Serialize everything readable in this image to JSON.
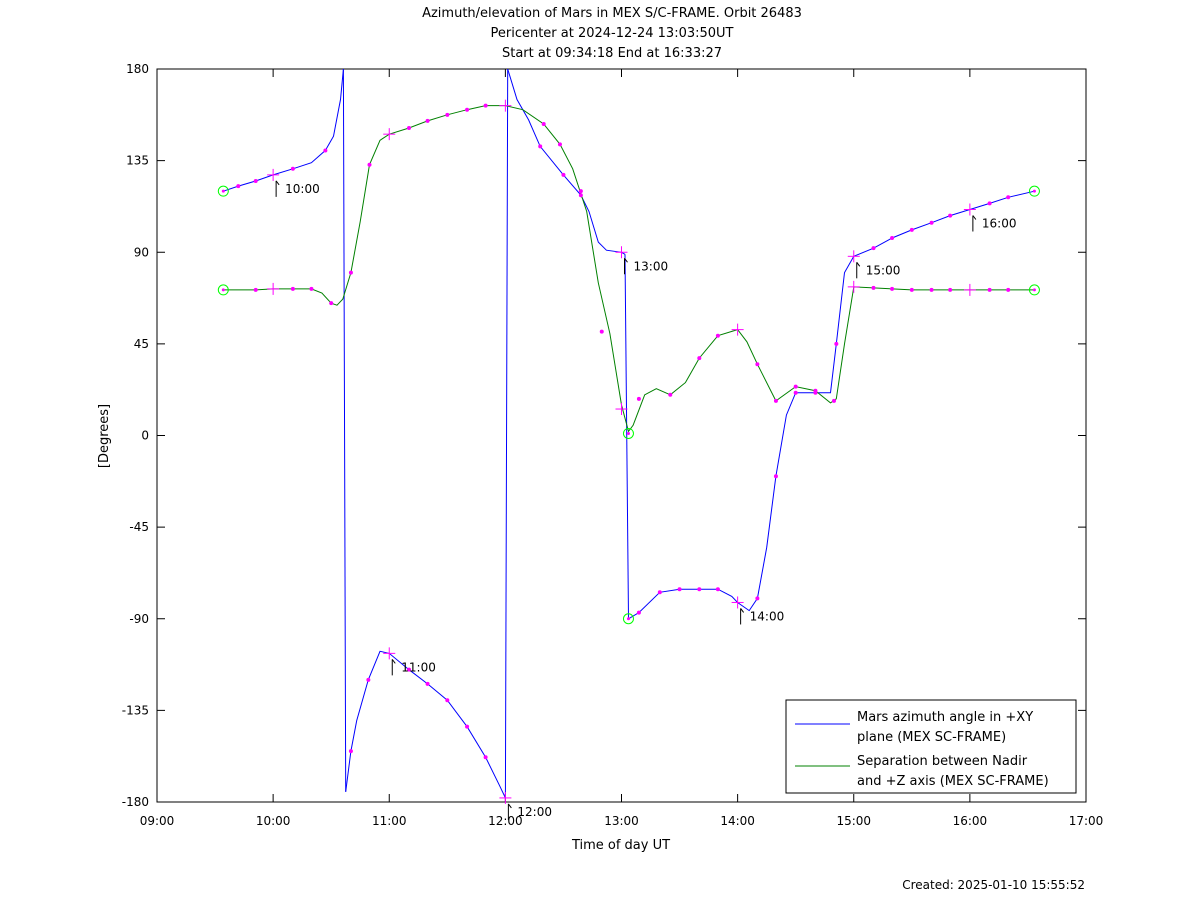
{
  "chart_data": {
    "type": "line",
    "title": [
      "Azimuth/elevation of Mars in MEX S/C-FRAME.  Orbit 26483",
      "Pericenter at 2024-12-24 13:03:50UT",
      "Start at 09:34:18 End at 16:33:27"
    ],
    "xlabel": "Time of day UT",
    "ylabel": "[Degrees]",
    "xlim": [
      9.0,
      17.0
    ],
    "ylim": [
      -180,
      180
    ],
    "x_ticks": [
      {
        "v": 9,
        "label": "09:00"
      },
      {
        "v": 10,
        "label": "10:00"
      },
      {
        "v": 11,
        "label": "11:00"
      },
      {
        "v": 12,
        "label": "12:00"
      },
      {
        "v": 13,
        "label": "13:00"
      },
      {
        "v": 14,
        "label": "14:00"
      },
      {
        "v": 15,
        "label": "15:00"
      },
      {
        "v": 16,
        "label": "16:00"
      },
      {
        "v": 17,
        "label": "17:00"
      }
    ],
    "y_ticks": [
      {
        "v": 180,
        "label": "180"
      },
      {
        "v": 135,
        "label": "135"
      },
      {
        "v": 90,
        "label": "90"
      },
      {
        "v": 45,
        "label": "45"
      },
      {
        "v": 0,
        "label": "0"
      },
      {
        "v": -45,
        "label": "-45"
      },
      {
        "v": -90,
        "label": "-90"
      },
      {
        "v": -135,
        "label": "-135"
      },
      {
        "v": -180,
        "label": "-180"
      }
    ],
    "grid": false,
    "legend_position": "bottom-right",
    "series": [
      {
        "name": "Mars azimuth angle in +XY\nplane (MEX SC-FRAME)",
        "color": "#0000ff",
        "segments": [
          [
            [
              9.571,
              120
            ],
            [
              9.7,
              122.5
            ],
            [
              9.85,
              125
            ],
            [
              10.0,
              128
            ],
            [
              10.17,
              131
            ],
            [
              10.33,
              134
            ],
            [
              10.45,
              140
            ],
            [
              10.52,
              147
            ],
            [
              10.58,
              165
            ],
            [
              10.605,
              180
            ]
          ],
          [
            [
              10.605,
              180
            ],
            [
              10.625,
              -175
            ]
          ],
          [
            [
              10.625,
              -175
            ],
            [
              10.67,
              -155
            ],
            [
              10.72,
              -140
            ],
            [
              10.82,
              -120
            ],
            [
              10.92,
              -106
            ],
            [
              11.0,
              -107
            ],
            [
              11.17,
              -115
            ],
            [
              11.33,
              -122
            ],
            [
              11.5,
              -130
            ],
            [
              11.67,
              -143
            ],
            [
              11.83,
              -158
            ],
            [
              11.95,
              -172
            ],
            [
              12.0,
              -178
            ]
          ],
          [
            [
              12.0,
              -178
            ],
            [
              12.02,
              180
            ]
          ],
          [
            [
              12.02,
              180
            ],
            [
              12.1,
              165
            ],
            [
              12.2,
              155
            ],
            [
              12.3,
              142
            ],
            [
              12.5,
              128
            ],
            [
              12.65,
              118
            ],
            [
              12.72,
              110
            ],
            [
              12.8,
              95
            ],
            [
              12.87,
              91
            ],
            [
              13.0,
              90
            ],
            [
              13.03,
              89
            ]
          ],
          [
            [
              13.03,
              89
            ],
            [
              13.06,
              -90
            ]
          ],
          [
            [
              13.06,
              -90
            ],
            [
              13.15,
              -87
            ],
            [
              13.33,
              -77
            ],
            [
              13.5,
              -75.5
            ],
            [
              13.67,
              -75.5
            ],
            [
              13.83,
              -75.5
            ],
            [
              13.95,
              -79
            ],
            [
              14.0,
              -82
            ],
            [
              14.1,
              -86
            ],
            [
              14.17,
              -80
            ],
            [
              14.25,
              -55
            ],
            [
              14.33,
              -20
            ],
            [
              14.42,
              10
            ],
            [
              14.5,
              21
            ],
            [
              14.67,
              21
            ],
            [
              14.8,
              21
            ],
            [
              14.85,
              45
            ],
            [
              14.92,
              80
            ],
            [
              15.0,
              88
            ],
            [
              15.17,
              92
            ],
            [
              15.33,
              97
            ],
            [
              15.5,
              101
            ],
            [
              15.67,
              104.5
            ],
            [
              15.83,
              108
            ],
            [
              16.0,
              111
            ],
            [
              16.17,
              114
            ],
            [
              16.33,
              117
            ],
            [
              16.556,
              120
            ]
          ]
        ],
        "markers": [
          [
            9.7,
            122.5
          ],
          [
            9.85,
            125
          ],
          [
            10.17,
            131
          ],
          [
            10.45,
            140
          ],
          [
            10.67,
            -155
          ],
          [
            10.82,
            -120
          ],
          [
            11.17,
            -115
          ],
          [
            11.33,
            -122
          ],
          [
            11.5,
            -130
          ],
          [
            11.67,
            -143
          ],
          [
            11.83,
            -158
          ],
          [
            12.3,
            142
          ],
          [
            12.5,
            128
          ],
          [
            12.65,
            118
          ],
          [
            13.15,
            -87
          ],
          [
            13.33,
            -77
          ],
          [
            13.5,
            -75.5
          ],
          [
            13.67,
            -75.5
          ],
          [
            13.83,
            -75.5
          ],
          [
            14.17,
            -80
          ],
          [
            14.33,
            -20
          ],
          [
            14.5,
            21
          ],
          [
            14.67,
            21
          ],
          [
            14.85,
            45
          ],
          [
            15.17,
            92
          ],
          [
            15.33,
            97
          ],
          [
            15.5,
            101
          ],
          [
            15.67,
            104.5
          ],
          [
            15.83,
            108
          ],
          [
            16.17,
            114
          ],
          [
            16.33,
            117
          ]
        ],
        "crosses": [
          [
            10.0,
            128
          ],
          [
            11.0,
            -107
          ],
          [
            12.0,
            -178
          ],
          [
            13.0,
            90
          ],
          [
            14.0,
            -82
          ],
          [
            15.0,
            88
          ],
          [
            16.0,
            111
          ]
        ]
      },
      {
        "name": "Separation between Nadir\nand +Z axis (MEX SC-FRAME)",
        "color": "#008000",
        "segments": [
          [
            [
              9.571,
              71.5
            ],
            [
              9.7,
              71.5
            ],
            [
              9.85,
              71.5
            ],
            [
              10.0,
              72
            ],
            [
              10.17,
              72
            ],
            [
              10.33,
              72
            ],
            [
              10.42,
              70
            ],
            [
              10.5,
              65
            ],
            [
              10.55,
              64
            ],
            [
              10.6,
              67
            ],
            [
              10.67,
              80
            ],
            [
              10.75,
              105
            ],
            [
              10.83,
              133
            ],
            [
              10.92,
              145
            ],
            [
              11.0,
              148
            ],
            [
              11.17,
              151
            ],
            [
              11.33,
              154.5
            ],
            [
              11.5,
              157.5
            ],
            [
              11.67,
              160
            ],
            [
              11.83,
              162
            ],
            [
              12.0,
              162
            ],
            [
              12.15,
              160
            ],
            [
              12.33,
              153
            ],
            [
              12.47,
              143
            ],
            [
              12.58,
              131
            ],
            [
              12.7,
              110
            ],
            [
              12.8,
              75
            ],
            [
              12.9,
              50
            ],
            [
              13.0,
              15
            ],
            [
              13.06,
              2
            ],
            [
              13.1,
              5
            ],
            [
              13.2,
              20
            ],
            [
              13.3,
              23
            ],
            [
              13.42,
              20
            ],
            [
              13.55,
              26
            ],
            [
              13.67,
              38
            ],
            [
              13.83,
              49
            ],
            [
              14.0,
              52
            ],
            [
              14.08,
              46
            ],
            [
              14.17,
              35
            ],
            [
              14.33,
              17
            ],
            [
              14.5,
              24
            ],
            [
              14.67,
              22
            ],
            [
              14.8,
              16
            ],
            [
              14.85,
              18
            ],
            [
              14.92,
              45
            ],
            [
              15.0,
              73
            ],
            [
              15.17,
              72.5
            ],
            [
              15.33,
              72
            ],
            [
              15.5,
              71.5
            ],
            [
              15.67,
              71.5
            ],
            [
              15.83,
              71.5
            ],
            [
              16.0,
              71.5
            ],
            [
              16.17,
              71.5
            ],
            [
              16.33,
              71.5
            ],
            [
              16.556,
              71.5
            ]
          ]
        ],
        "markers": [
          [
            9.85,
            71.5
          ],
          [
            10.17,
            72
          ],
          [
            10.33,
            72
          ],
          [
            10.5,
            65
          ],
          [
            10.67,
            80
          ],
          [
            10.83,
            133
          ],
          [
            11.17,
            151
          ],
          [
            11.33,
            154.5
          ],
          [
            11.5,
            157.5
          ],
          [
            11.67,
            160
          ],
          [
            11.83,
            162
          ],
          [
            12.33,
            153
          ],
          [
            12.47,
            143
          ],
          [
            12.65,
            120
          ],
          [
            12.83,
            51
          ],
          [
            13.15,
            18
          ],
          [
            13.42,
            20
          ],
          [
            13.67,
            38
          ],
          [
            13.83,
            49
          ],
          [
            14.17,
            35
          ],
          [
            14.33,
            17
          ],
          [
            14.5,
            24
          ],
          [
            14.67,
            22
          ],
          [
            14.83,
            17
          ],
          [
            15.17,
            72.5
          ],
          [
            15.33,
            72
          ],
          [
            15.5,
            71.5
          ],
          [
            15.67,
            71.5
          ],
          [
            15.83,
            71.5
          ],
          [
            16.17,
            71.5
          ],
          [
            16.33,
            71.5
          ]
        ],
        "crosses": [
          [
            10.0,
            72
          ],
          [
            11.0,
            148
          ],
          [
            12.0,
            162
          ],
          [
            13.0,
            13
          ],
          [
            14.0,
            52
          ],
          [
            15.0,
            73
          ],
          [
            16.0,
            71.5
          ]
        ]
      }
    ],
    "endpoint_circles": [
      [
        9.571,
        120
      ],
      [
        9.571,
        71.5
      ],
      [
        16.556,
        120
      ],
      [
        16.556,
        71.5
      ],
      [
        13.06,
        1
      ],
      [
        13.06,
        -90
      ]
    ],
    "hour_annotations": [
      {
        "x": 10.0,
        "y": 128,
        "label": "10:00",
        "dir": "up"
      },
      {
        "x": 11.0,
        "y": -107,
        "label": "11:00",
        "dir": "up"
      },
      {
        "x": 12.0,
        "y": -178,
        "label": "12:00",
        "dir": "up"
      },
      {
        "x": 13.0,
        "y": 90,
        "label": "13:00",
        "dir": "up"
      },
      {
        "x": 14.0,
        "y": -82,
        "label": "14:00",
        "dir": "up"
      },
      {
        "x": 15.0,
        "y": 88,
        "label": "15:00",
        "dir": "up"
      },
      {
        "x": 16.0,
        "y": 111,
        "label": "16:00",
        "dir": "up"
      }
    ],
    "marker_color": "#ff00ff",
    "circle_color": "#00ff00",
    "footer": "Created: 2025-01-10 15:55:52"
  }
}
